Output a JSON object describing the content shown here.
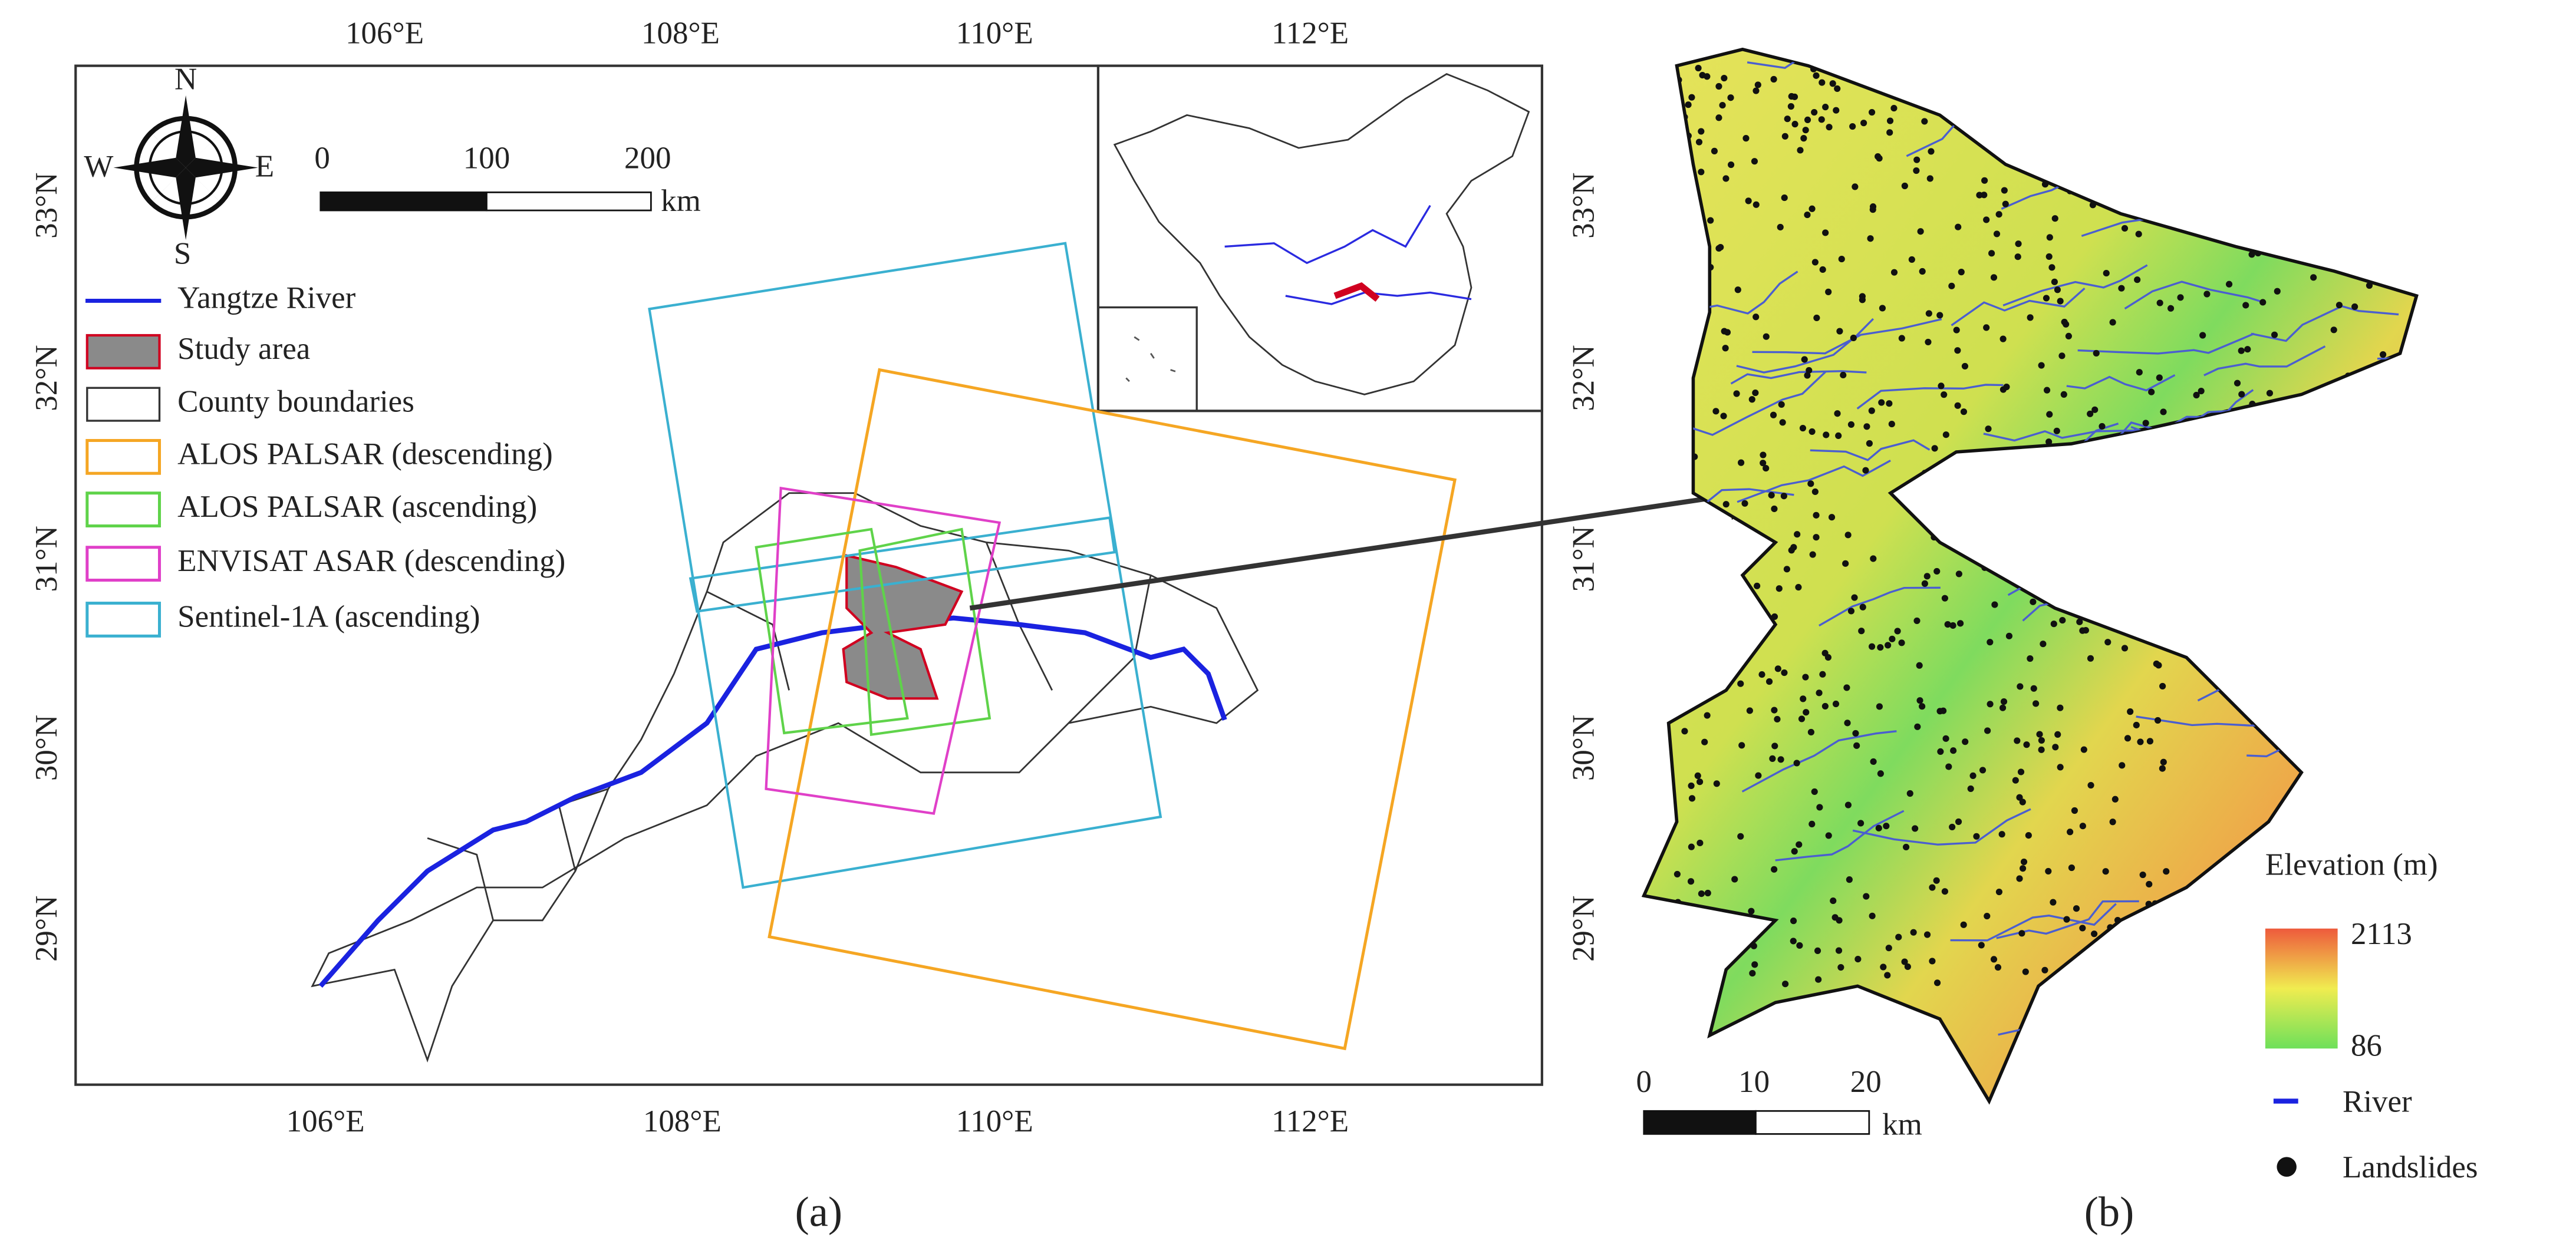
{
  "panel_a": {
    "top_longitude_labels": [
      "106°E",
      "108°E",
      "110°E",
      "112°E"
    ],
    "bottom_longitude_labels": [
      "106°E",
      "108°E",
      "110°E",
      "112°E"
    ],
    "latitude_labels": [
      "33°N",
      "32°N",
      "31°N",
      "30°N",
      "29°N"
    ],
    "compass": {
      "n": "N",
      "s": "S",
      "w": "W",
      "e": "E"
    },
    "scale_bar": {
      "labels": [
        0,
        100,
        200
      ],
      "unit": "km"
    },
    "legend": [
      "Yangtze River",
      "Study area",
      "County boundaries",
      "ALOS PALSAR (descending)",
      "ALOS PALSAR (ascending)",
      "ENVISAT ASAR (descending)",
      "Sentinel-1A (ascending)"
    ],
    "caption": "(a)"
  },
  "panel_b": {
    "latitude_labels": [
      "33°N",
      "32°N",
      "31°N",
      "30°N",
      "29°N"
    ],
    "legend_title": "Elevation (m)",
    "colorbar": {
      "max": 2113,
      "min": 86
    },
    "legend": [
      "River",
      "Landslides"
    ],
    "scale_bar": {
      "labels": [
        0,
        10,
        20
      ],
      "unit": "km"
    },
    "caption": "(b)"
  }
}
